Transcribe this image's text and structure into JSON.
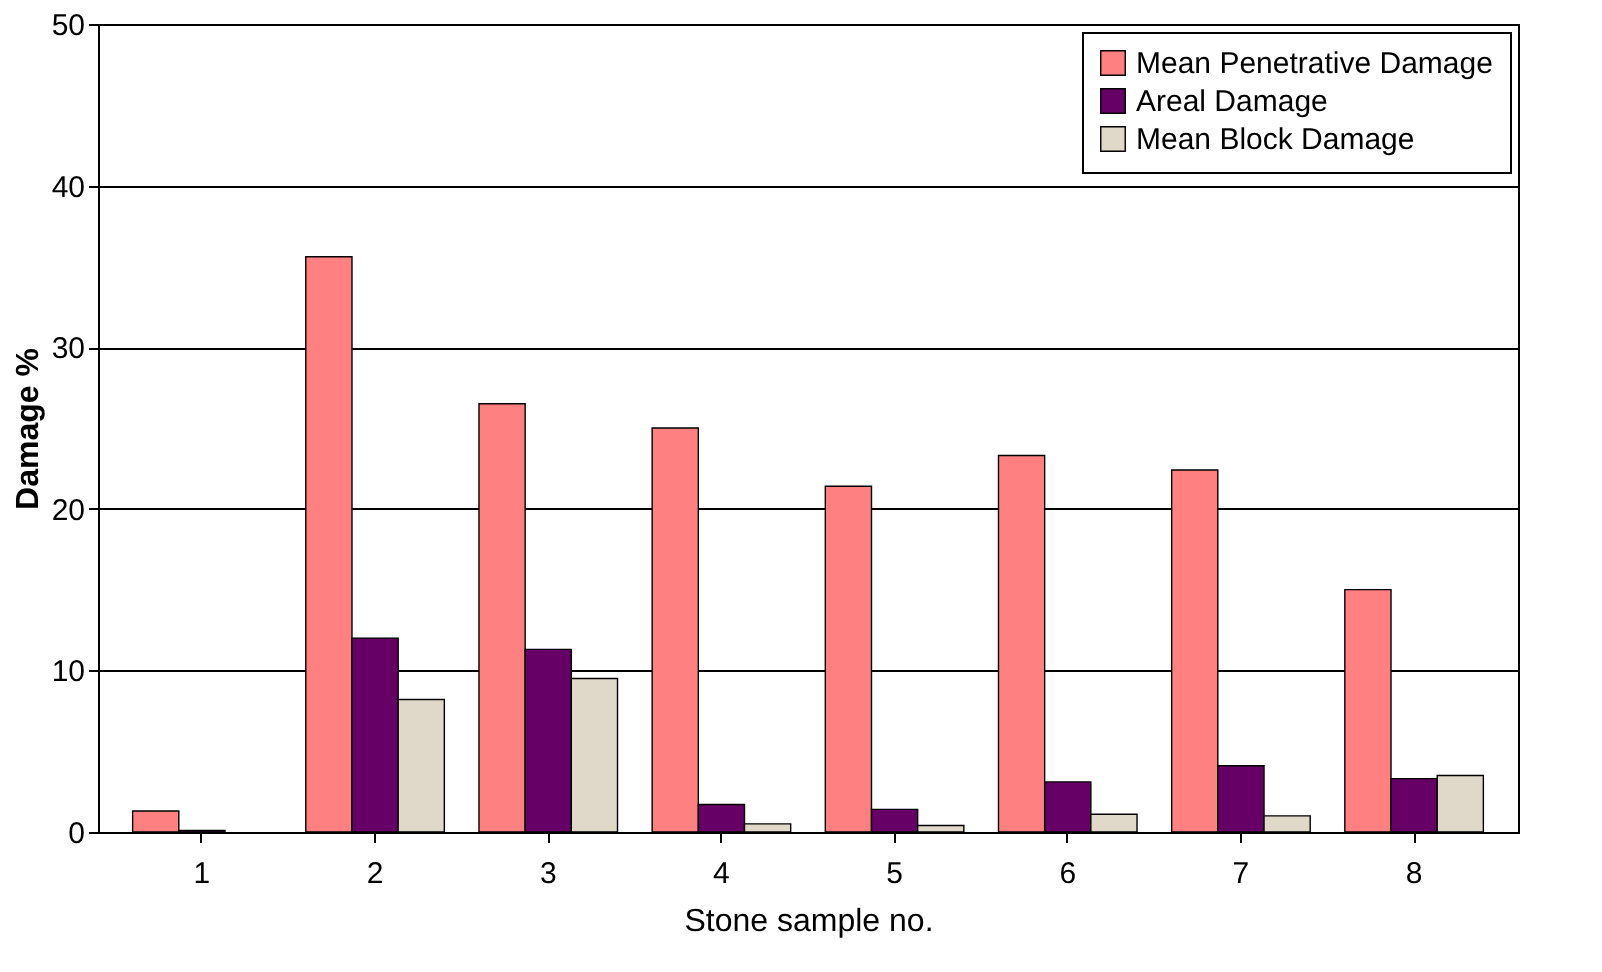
{
  "chart_data": {
    "type": "bar",
    "xlabel": "Stone sample no.",
    "ylabel": "Damage %",
    "categories": [
      "1",
      "2",
      "3",
      "4",
      "5",
      "6",
      "7",
      "8"
    ],
    "series": [
      {
        "name": "Mean Penetrative Damage",
        "color": "#ff8080",
        "values": [
          1.3,
          35.6,
          26.5,
          25.0,
          21.4,
          23.3,
          22.4,
          15.0
        ]
      },
      {
        "name": "Areal Damage",
        "color": "#660066",
        "values": [
          0.1,
          12.0,
          11.3,
          1.7,
          1.4,
          3.1,
          4.1,
          3.3
        ]
      },
      {
        "name": "Mean Block Damage",
        "color": "#e0d8c8",
        "values": [
          null,
          8.2,
          9.5,
          0.5,
          0.4,
          1.1,
          1.0,
          3.5
        ]
      }
    ],
    "ylim": [
      0,
      50
    ],
    "yticks": [
      0,
      10,
      20,
      30,
      40,
      50
    ],
    "grid": "y",
    "legend": "top right"
  }
}
